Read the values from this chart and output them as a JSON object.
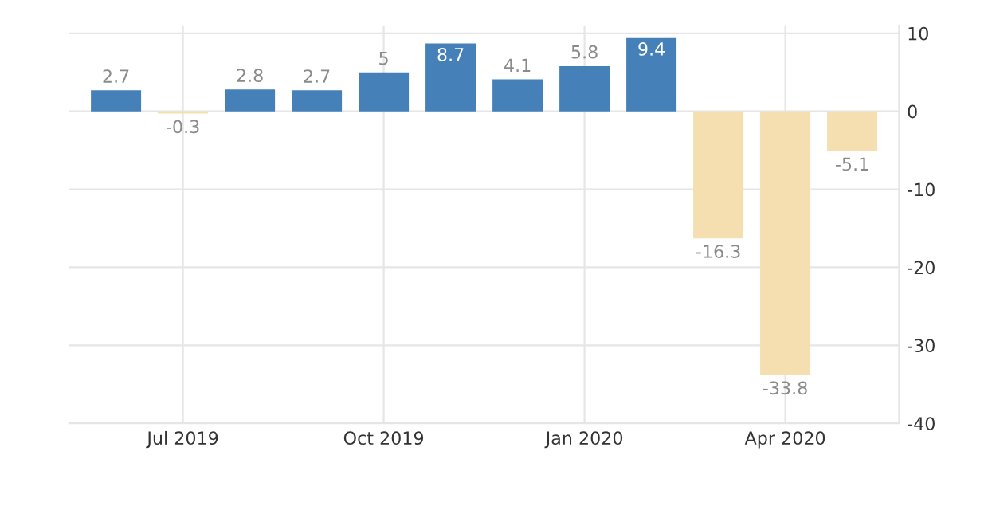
{
  "chart_data": {
    "type": "bar",
    "categories": [
      null,
      "Jul 2019",
      null,
      null,
      "Oct 2019",
      null,
      null,
      "Jan 2020",
      null,
      null,
      "Apr 2020",
      null
    ],
    "values": [
      2.7,
      -0.3,
      2.8,
      2.7,
      5,
      8.7,
      4.1,
      5.8,
      9.4,
      -16.3,
      -33.8,
      -5.1
    ],
    "colors": [
      "#4581b8",
      "#f5deb0",
      "#4581b8",
      "#4581b8",
      "#4581b8",
      "#4581b8",
      "#4581b8",
      "#4581b8",
      "#4581b8",
      "#f5deb0",
      "#f5deb0",
      "#f5deb0"
    ],
    "ylim": [
      -40,
      11
    ],
    "yticks": [
      10,
      0,
      -10,
      -20,
      -30,
      -40
    ],
    "grid": true,
    "data_labels": true
  }
}
